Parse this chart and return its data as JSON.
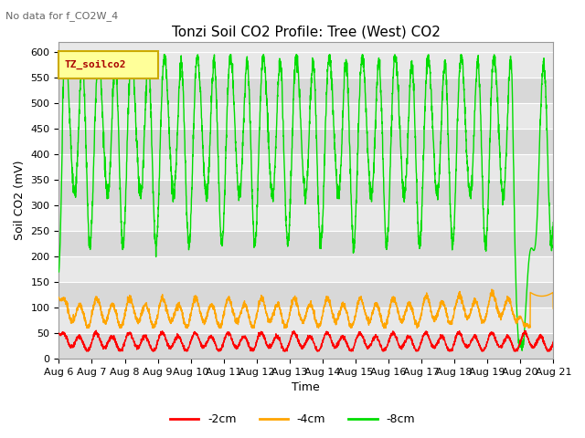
{
  "title": "Tonzi Soil CO2 Profile: Tree (West) CO2",
  "subtitle": "No data for f_CO2W_4",
  "xlabel": "Time",
  "ylabel": "Soil CO2 (mV)",
  "ylim": [
    0,
    620
  ],
  "yticks": [
    0,
    50,
    100,
    150,
    200,
    250,
    300,
    350,
    400,
    450,
    500,
    550,
    600
  ],
  "x_labels": [
    "Aug 6",
    "Aug 7",
    "Aug 8",
    "Aug 9",
    "Aug 10",
    "Aug 11",
    "Aug 12",
    "Aug 13",
    "Aug 14",
    "Aug 15",
    "Aug 16",
    "Aug 17",
    "Aug 18",
    "Aug 19",
    "Aug 20",
    "Aug 21"
  ],
  "legend_label_box": "TZ_soilco2",
  "series": [
    {
      "label": "-2cm",
      "color": "#ff0000"
    },
    {
      "label": "-4cm",
      "color": "#ffa500"
    },
    {
      "label": "-8cm",
      "color": "#00dd00"
    }
  ],
  "bg_color": "#ffffff",
  "plot_bg_color": "#e8e8e8",
  "grid_color": "#ffffff",
  "title_fontsize": 11,
  "axis_fontsize": 9,
  "tick_fontsize": 8,
  "legend_box_color": "#ffff99",
  "legend_box_edge": "#ccaa00",
  "legend_text_color": "#aa0000"
}
